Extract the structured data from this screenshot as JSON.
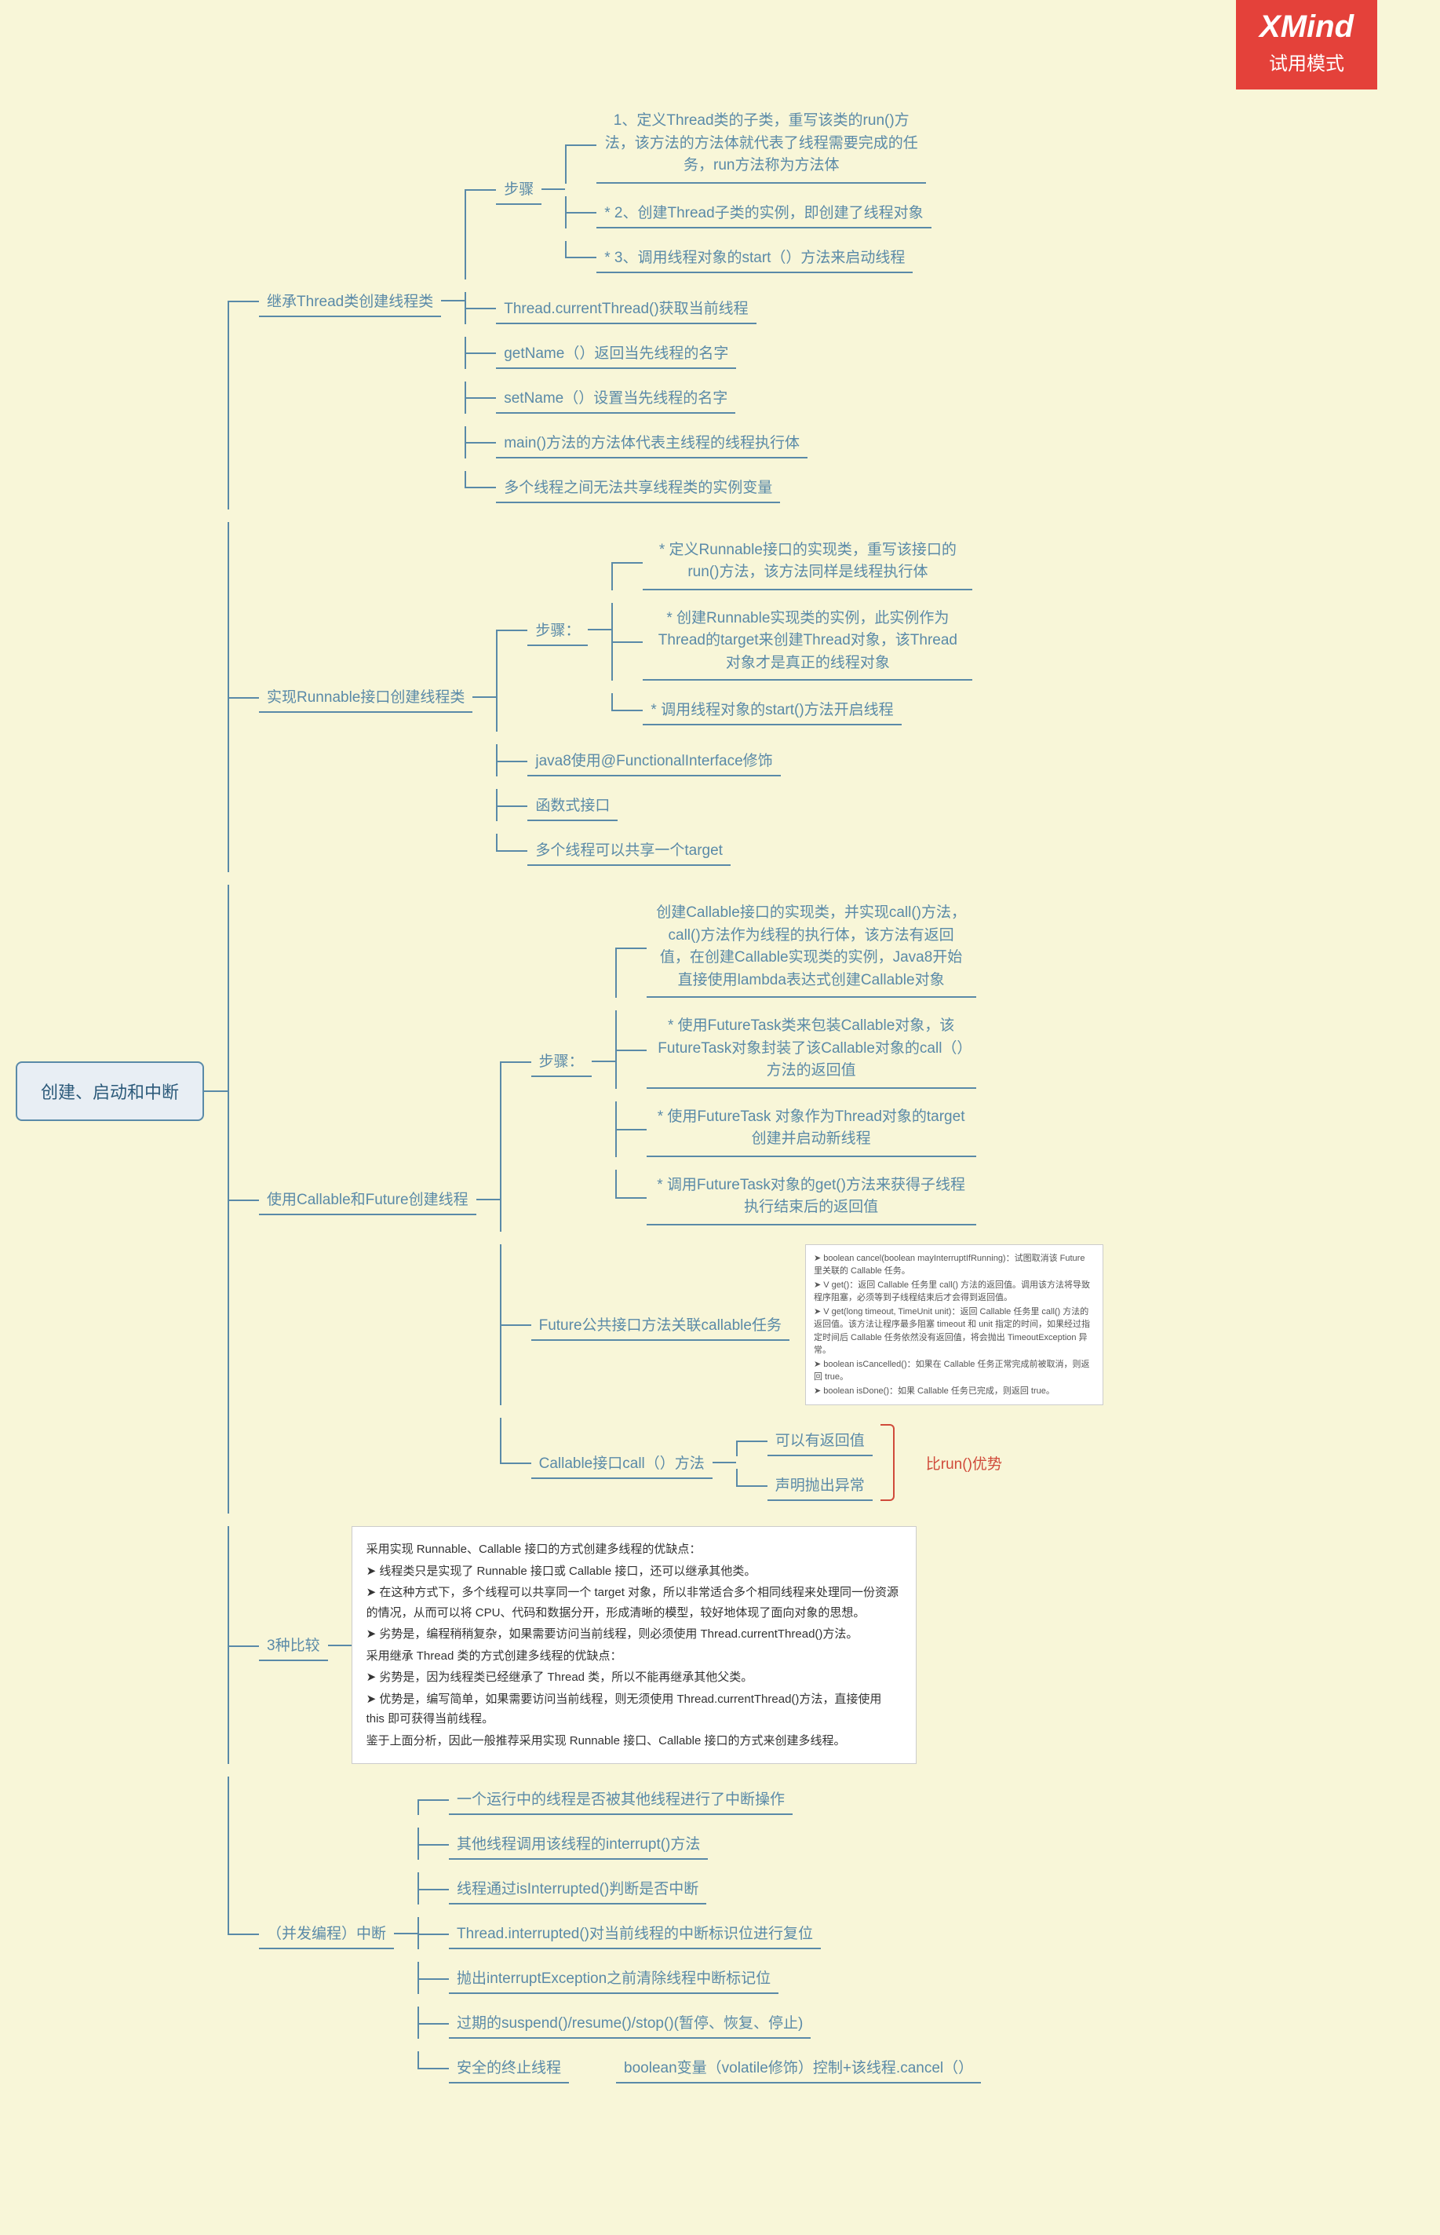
{
  "watermark": {
    "brand": "XMind",
    "mode": "试用模式"
  },
  "colors": {
    "bg": "#f8f6d8",
    "node_border": "#5a8aa8",
    "node_text": "#5a8aa8",
    "root_bg": "#e8eef4",
    "watermark_bg": "#e4413a",
    "red_annotation": "#d04a3a",
    "note_bg": "#ffffff"
  },
  "typography": {
    "base_font": "Microsoft YaHei, SimSun, sans-serif",
    "base_size_pt": 14,
    "root_size_pt": 17,
    "watermark_brand_pt": 30,
    "watermark_mode_pt": 18
  },
  "root": "创建、启动和中断",
  "red_note": "比run()优势",
  "b1": {
    "title": "继承Thread类创建线程类",
    "steps_label": "步骤",
    "s1": "1、定义Thread类的子类，重写该类的run()方法，该方法的方法体就代表了线程需要完成的任务，run方法称为方法体",
    "s2": "* 2、创建Thread子类的实例，即创建了线程对象",
    "s3": "* 3、调用线程对象的start（）方法来启动线程",
    "n1": "Thread.currentThread()获取当前线程",
    "n2": "getName（）返回当先线程的名字",
    "n3": "setName（）设置当先线程的名字",
    "n4": "main()方法的方法体代表主线程的线程执行体",
    "n5": "多个线程之间无法共享线程类的实例变量"
  },
  "b2": {
    "title": "实现Runnable接口创建线程类",
    "steps_label": "步骤：",
    "s1": "* 定义Runnable接口的实现类，重写该接口的run()方法，该方法同样是线程执行体",
    "s2": "* 创建Runnable实现类的实例，此实例作为Thread的target来创建Thread对象，该Thread对象才是真正的线程对象",
    "s3": "* 调用线程对象的start()方法开启线程",
    "n1": "java8使用@FunctionalInterface修饰",
    "n2": "函数式接口",
    "n3": "多个线程可以共享一个target"
  },
  "b3": {
    "title": "使用Callable和Future创建线程",
    "steps_label": "步骤：",
    "s0": "创建Callable接口的实现类，并实现call()方法，call()方法作为线程的执行体，该方法有返回值，在创建Callable实现类的实例，Java8开始直接使用lambda表达式创建Callable对象",
    "s1": "* 使用FutureTask类来包装Callable对象，该FutureTask对象封装了该Callable对象的call（）方法的返回值",
    "s2": "* 使用FutureTask 对象作为Thread对象的target创建并启动新线程",
    "s3": "* 调用FutureTask对象的get()方法来获得子线程执行结束后的返回值",
    "n1": "Future公共接口方法关联callable任务",
    "n2": "Callable接口call（）方法",
    "c1": "可以有返回值",
    "c2": "声明抛出异常",
    "future_notes": {
      "l1": "➤ boolean cancel(boolean mayInterruptIfRunning)：试图取消该 Future 里关联的 Callable 任务。",
      "l2": "➤ V get()：返回 Callable 任务里 call() 方法的返回值。调用该方法将导致程序阻塞，必须等到子线程结束后才会得到返回值。",
      "l3": "➤ V get(long timeout, TimeUnit unit)：返回 Callable 任务里 call() 方法的返回值。该方法让程序最多阻塞 timeout 和 unit 指定的时间，如果经过指定时间后 Callable 任务依然没有返回值，将会抛出 TimeoutException 异常。",
      "l4": "➤ boolean isCancelled()：如果在 Callable 任务正常完成前被取消，则返回 true。",
      "l5": "➤ boolean isDone()：如果 Callable 任务已完成，则返回 true。"
    }
  },
  "b4": {
    "title": "3种比较",
    "notes": {
      "l1": "采用实现 Runnable、Callable 接口的方式创建多线程的优缺点：",
      "l2": "➤ 线程类只是实现了 Runnable 接口或 Callable 接口，还可以继承其他类。",
      "l3": "➤ 在这种方式下，多个线程可以共享同一个 target 对象，所以非常适合多个相同线程来处理同一份资源的情况，从而可以将 CPU、代码和数据分开，形成清晰的模型，较好地体现了面向对象的思想。",
      "l4": "➤ 劣势是，编程稍稍复杂，如果需要访问当前线程，则必须使用 Thread.currentThread()方法。",
      "l5": "采用继承 Thread 类的方式创建多线程的优缺点：",
      "l6": "➤ 劣势是，因为线程类已经继承了 Thread 类，所以不能再继承其他父类。",
      "l7": "➤ 优势是，编写简单，如果需要访问当前线程，则无须使用 Thread.currentThread()方法，直接使用 this 即可获得当前线程。",
      "l8": "鉴于上面分析，因此一般推荐采用实现 Runnable 接口、Callable 接口的方式来创建多线程。"
    }
  },
  "b5": {
    "title": "（并发编程）中断",
    "n1": "一个运行中的线程是否被其他线程进行了中断操作",
    "n2": "其他线程调用该线程的interrupt()方法",
    "n3": "线程通过isInterrupted()判断是否中断",
    "n4": "Thread.interrupted()对当前线程的中断标识位进行复位",
    "n5": "抛出interruptException之前清除线程中断标记位",
    "n6": "过期的suspend()/resume()/stop()(暂停、恢复、停止)",
    "n7a": "安全的终止线程",
    "n7b": "boolean变量（volatile修饰）控制+该线程.cancel（）"
  }
}
